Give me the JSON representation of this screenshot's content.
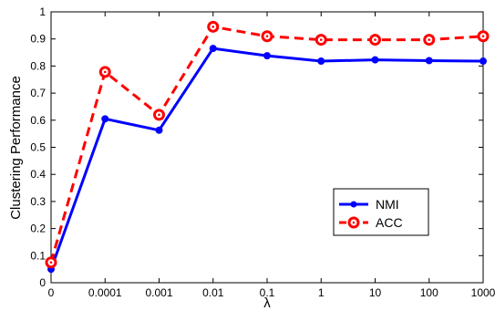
{
  "chart_data": {
    "type": "line",
    "categories": [
      "0",
      "0.0001",
      "0.001",
      "0.01",
      "0.1",
      "1",
      "10",
      "100",
      "1000"
    ],
    "xlabel": "λ",
    "ylabel": "Clustering Performance",
    "ylim": [
      0,
      1
    ],
    "yticks": [
      "0",
      "0.1",
      "0.2",
      "0.3",
      "0.4",
      "0.5",
      "0.6",
      "0.7",
      "0.8",
      "0.9",
      "1"
    ],
    "grid": false,
    "legend_position": "lower-right",
    "series": [
      {
        "name": "NMI",
        "values": [
          0.05,
          0.605,
          0.563,
          0.865,
          0.838,
          0.818,
          0.823,
          0.82,
          0.818
        ],
        "color": "#0000ff",
        "line_style": "solid",
        "marker": "dot"
      },
      {
        "name": "ACC",
        "values": [
          0.075,
          0.778,
          0.62,
          0.945,
          0.91,
          0.897,
          0.897,
          0.897,
          0.91
        ],
        "color": "#ff0000",
        "line_style": "dashed",
        "marker": "circle"
      }
    ]
  }
}
